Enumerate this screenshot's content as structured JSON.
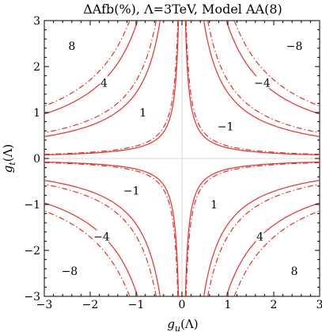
{
  "chart_data": {
    "type": "contour",
    "title": "ΔAfb(%), Λ=3TeV, Model AA(8)",
    "xlabel": "g_u(Λ)",
    "ylabel": "g_t(Λ)",
    "xlabel_main": "g",
    "xlabel_sub": "u",
    "xlabel_arg": "(Λ)",
    "ylabel_main": "g",
    "ylabel_sub": "t",
    "ylabel_arg": "(Λ)",
    "xlim": [
      -3,
      3
    ],
    "ylim": [
      -3,
      3
    ],
    "xticks": [
      -3,
      -2,
      -1,
      0,
      1,
      2,
      3
    ],
    "yticks": [
      -3,
      -2,
      -1,
      0,
      1,
      2,
      3
    ],
    "xtick_labels": [
      "−3",
      "−2",
      "−1",
      "0",
      "1",
      "2",
      "3"
    ],
    "ytick_labels": [
      "−3",
      "−2",
      "−1",
      "0",
      "1",
      "2",
      "3"
    ],
    "grid": false,
    "zero_lines": true,
    "line_color": "#e8302a",
    "curve_constants": [
      0.23,
      1.43,
      2.9
    ],
    "dashed_scale": 1.18,
    "series": [
      {
        "style": "solid"
      },
      {
        "style": "dash-dot"
      }
    ],
    "contour_labels": [
      {
        "text": "8",
        "x": -2.4,
        "y": 2.45
      },
      {
        "text": "4",
        "x": -1.7,
        "y": 1.65
      },
      {
        "text": "1",
        "x": -0.85,
        "y": 1.0
      },
      {
        "text": "−8",
        "x": 2.45,
        "y": 2.45
      },
      {
        "text": "−4",
        "x": 1.75,
        "y": 1.65
      },
      {
        "text": "−1",
        "x": 0.95,
        "y": 0.7
      },
      {
        "text": "−1",
        "x": -1.1,
        "y": -0.7
      },
      {
        "text": "−4",
        "x": -1.75,
        "y": -1.7
      },
      {
        "text": "−8",
        "x": -2.45,
        "y": -2.45
      },
      {
        "text": "1",
        "x": 0.7,
        "y": -1.0
      },
      {
        "text": "4",
        "x": 1.7,
        "y": -1.7
      },
      {
        "text": "8",
        "x": 2.45,
        "y": -2.45
      }
    ]
  }
}
